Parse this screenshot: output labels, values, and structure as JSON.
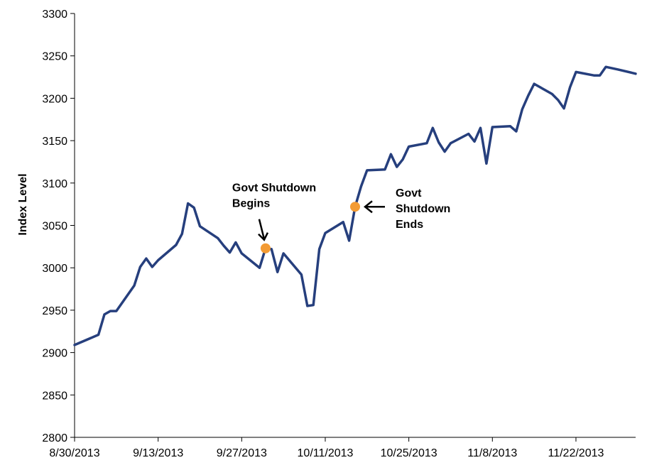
{
  "chart_data": {
    "type": "line",
    "title": "",
    "xlabel": "",
    "ylabel": "Index Level",
    "ylim": [
      2800,
      3300
    ],
    "y_ticks": [
      2800,
      2850,
      2900,
      2950,
      3000,
      3050,
      3100,
      3150,
      3200,
      3250,
      3300
    ],
    "x_ticks": [
      "8/30/2013",
      "9/13/2013",
      "9/27/2013",
      "10/11/2013",
      "10/25/2013",
      "11/8/2013",
      "11/22/2013"
    ],
    "xlim": [
      "8/30/2013",
      "12/2/2013"
    ],
    "grid": false,
    "legend": "none",
    "series": [
      {
        "color": "#263f7d",
        "x": [
          "8/30/2013",
          "9/3/2013",
          "9/4/2013",
          "9/5/2013",
          "9/6/2013",
          "9/9/2013",
          "9/10/2013",
          "9/11/2013",
          "9/12/2013",
          "9/13/2013",
          "9/16/2013",
          "9/17/2013",
          "9/18/2013",
          "9/19/2013",
          "9/20/2013",
          "9/23/2013",
          "9/24/2013",
          "9/25/2013",
          "9/26/2013",
          "9/27/2013",
          "9/30/2013",
          "10/1/2013",
          "10/2/2013",
          "10/3/2013",
          "10/4/2013",
          "10/7/2013",
          "10/8/2013",
          "10/9/2013",
          "10/10/2013",
          "10/11/2013",
          "10/14/2013",
          "10/15/2013",
          "10/16/2013",
          "10/17/2013",
          "10/18/2013",
          "10/21/2013",
          "10/22/2013",
          "10/23/2013",
          "10/24/2013",
          "10/25/2013",
          "10/28/2013",
          "10/29/2013",
          "10/30/2013",
          "10/31/2013",
          "11/1/2013",
          "11/4/2013",
          "11/5/2013",
          "11/6/2013",
          "11/7/2013",
          "11/8/2013",
          "11/11/2013",
          "11/12/2013",
          "11/13/2013",
          "11/14/2013",
          "11/15/2013",
          "11/18/2013",
          "11/19/2013",
          "11/20/2013",
          "11/21/2013",
          "11/22/2013",
          "11/25/2013",
          "11/26/2013",
          "11/27/2013",
          "11/29/2013",
          "12/2/2013"
        ],
        "y": [
          2909,
          2921,
          2945,
          2949,
          2949,
          2979,
          3001,
          3011,
          3001,
          3009,
          3027,
          3040,
          3076,
          3071,
          3049,
          3035,
          3026,
          3018,
          3030,
          3017,
          3000,
          3023,
          3022,
          2995,
          3017,
          2992,
          2955,
          2956,
          3022,
          3041,
          3054,
          3032,
          3072,
          3096,
          3115,
          3116,
          3134,
          3119,
          3128,
          3143,
          3147,
          3165,
          3148,
          3137,
          3147,
          3158,
          3149,
          3165,
          3123,
          3166,
          3167,
          3161,
          3187,
          3203,
          3217,
          3205,
          3198,
          3188,
          3213,
          3231,
          3227,
          3227,
          3237,
          3234,
          3229
        ]
      }
    ],
    "annotations": [
      {
        "date": "10/1/2013",
        "value": 3023,
        "lines": [
          "Govt Shutdown",
          "Begins"
        ],
        "marker_color": "#f39b34"
      },
      {
        "date": "10/16/2013",
        "value": 3072,
        "lines": [
          "Govt",
          "Shutdown",
          "Ends"
        ],
        "marker_color": "#f39b34"
      }
    ]
  }
}
